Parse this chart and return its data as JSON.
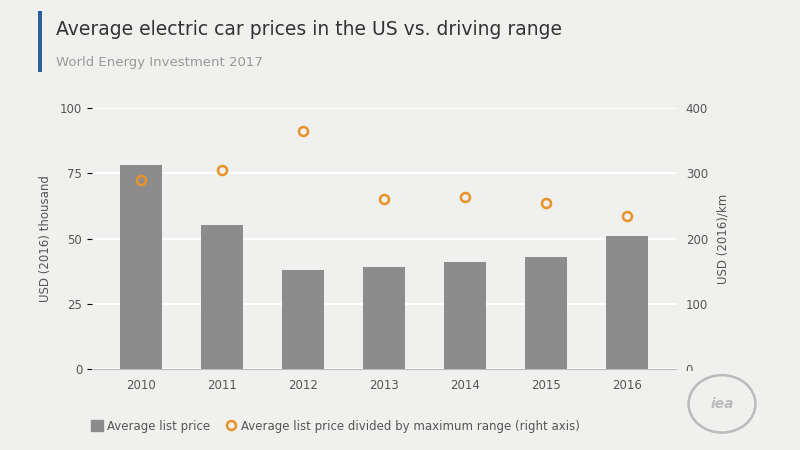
{
  "title": "Average electric car prices in the US vs. driving range",
  "subtitle": "World Energy Investment 2017",
  "years": [
    2010,
    2011,
    2012,
    2013,
    2014,
    2015,
    2016
  ],
  "bar_values": [
    78,
    55,
    38,
    39,
    41,
    43,
    51
  ],
  "line_values": [
    290,
    305,
    365,
    260,
    263,
    255,
    235
  ],
  "bar_color": "#8c8c8c",
  "line_color": "#e8922a",
  "ylabel_left": "USD (2016) thousand",
  "ylabel_right": "USD (2016)/km",
  "ylim_left": [
    0,
    100
  ],
  "ylim_right": [
    0,
    400
  ],
  "yticks_left": [
    0,
    25,
    50,
    75,
    100
  ],
  "yticks_right": [
    0,
    100,
    200,
    300,
    400
  ],
  "bg_color": "#f0f0ee",
  "title_color": "#333333",
  "subtitle_color": "#999999",
  "axis_color": "#bbbbbb",
  "tick_color": "#555555",
  "legend_bar_label": "Average list price",
  "legend_line_label": "Average list price divided by maximum range (right axis)",
  "title_fontsize": 13.5,
  "subtitle_fontsize": 9.5,
  "label_fontsize": 8.5,
  "tick_fontsize": 8.5,
  "accent_color": "#2e5f9e",
  "iea_circle_color": "#bbbbbb"
}
